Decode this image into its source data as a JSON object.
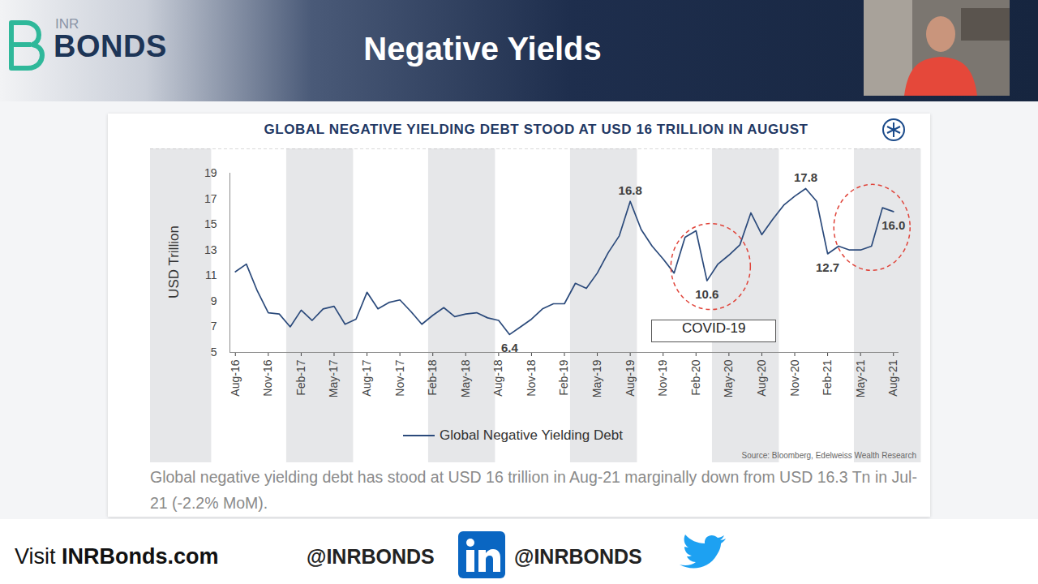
{
  "header": {
    "logo_small": "INR",
    "logo": "BONDS",
    "title": "Negative Yields"
  },
  "chart_data": {
    "type": "line",
    "title": "GLOBAL NEGATIVE YIELDING DEBT STOOD AT USD 16 TRILLION IN AUGUST",
    "ylabel": "USD Trillion",
    "categories": [
      "Aug-16",
      null,
      null,
      "Nov-16",
      null,
      null,
      "Feb-17",
      null,
      null,
      "May-17",
      null,
      null,
      "Aug-17",
      null,
      null,
      "Nov-17",
      null,
      null,
      "Feb-18",
      null,
      null,
      "May-18",
      null,
      null,
      "Aug-18",
      null,
      null,
      "Nov-18",
      null,
      null,
      "Feb-19",
      null,
      null,
      "May-19",
      null,
      null,
      "Aug-19",
      null,
      null,
      "Nov-19",
      null,
      null,
      "Feb-20",
      null,
      null,
      "May-20",
      null,
      null,
      "Aug-20",
      null,
      null,
      "Nov-20",
      null,
      null,
      "Feb-21",
      null,
      null,
      "May-21",
      null,
      null,
      "Aug-21"
    ],
    "series": [
      {
        "name": "Global Negative Yielding Debt",
        "color": "#2b4a7b",
        "values": [
          11.3,
          11.9,
          9.8,
          8.1,
          8.0,
          7.0,
          8.3,
          7.5,
          8.4,
          8.6,
          7.2,
          7.6,
          9.7,
          8.4,
          8.9,
          9.1,
          8.2,
          7.2,
          7.9,
          8.5,
          7.8,
          8.0,
          8.1,
          7.7,
          7.5,
          6.4,
          7.0,
          7.6,
          8.4,
          8.8,
          8.8,
          10.4,
          10.0,
          11.2,
          12.8,
          14.1,
          16.8,
          14.6,
          13.3,
          12.3,
          11.2,
          14.0,
          14.5,
          10.6,
          11.9,
          12.6,
          13.4,
          15.9,
          14.2,
          15.4,
          16.5,
          17.2,
          17.8,
          16.8,
          12.7,
          13.3,
          13.0,
          13.0,
          13.3,
          16.3,
          16.0
        ],
        "value_labels": [
          null,
          null,
          null,
          null,
          null,
          null,
          null,
          null,
          null,
          null,
          null,
          null,
          null,
          null,
          null,
          null,
          null,
          null,
          null,
          null,
          null,
          null,
          null,
          null,
          null,
          "6.4",
          null,
          null,
          null,
          null,
          null,
          null,
          null,
          null,
          null,
          null,
          "16.8",
          null,
          null,
          null,
          null,
          null,
          null,
          "10.6",
          null,
          null,
          null,
          null,
          null,
          null,
          null,
          null,
          "17.8",
          null,
          "12.7",
          null,
          null,
          null,
          null,
          null,
          "16.0"
        ]
      }
    ],
    "ylim": [
      5,
      19
    ],
    "yticks": [
      5,
      7,
      9,
      11,
      13,
      15,
      17,
      19
    ],
    "grid": false,
    "legend": "bottom",
    "annotations": [
      {
        "text": "COVID-19"
      }
    ],
    "source": "Source: Bloomberg, Edelweiss Wealth Research"
  },
  "caption": "Global negative yielding debt has stood at USD 16 trillion in Aug-21 marginally down from USD 16.3 Tn in Jul-21 (-2.2% MoM).",
  "footer": {
    "visit": "Visit",
    "site": "INRBonds.com",
    "linkedin_handle": "@INRBONDS",
    "twitter_handle": "@INRBONDS"
  }
}
